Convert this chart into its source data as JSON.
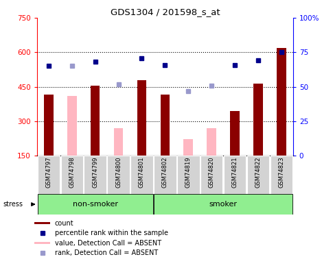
{
  "title": "GDS1304 / 201598_s_at",
  "samples": [
    "GSM74797",
    "GSM74798",
    "GSM74799",
    "GSM74800",
    "GSM74801",
    "GSM74802",
    "GSM74819",
    "GSM74820",
    "GSM74821",
    "GSM74822",
    "GSM74823"
  ],
  "count_values": [
    415,
    null,
    455,
    null,
    480,
    415,
    null,
    null,
    345,
    465,
    620
  ],
  "value_absent": [
    null,
    410,
    null,
    270,
    null,
    null,
    220,
    270,
    null,
    null,
    null
  ],
  "rank_present": [
    540,
    null,
    560,
    null,
    575,
    545,
    null,
    null,
    545,
    565,
    600
  ],
  "rank_absent": [
    null,
    540,
    null,
    460,
    null,
    null,
    430,
    455,
    null,
    null,
    null
  ],
  "ylim": [
    150,
    750
  ],
  "y2lim": [
    0,
    100
  ],
  "yticks": [
    150,
    300,
    450,
    600,
    750
  ],
  "y2ticks": [
    0,
    25,
    50,
    75,
    100
  ],
  "non_smoker_indices": [
    0,
    1,
    2,
    3,
    4
  ],
  "smoker_indices": [
    5,
    6,
    7,
    8,
    9,
    10
  ],
  "bar_color_present": "#8B0000",
  "bar_color_absent": "#FFB6C1",
  "dot_color_present": "#00008B",
  "dot_color_absent": "#9999CC",
  "group_label_nonsmoker": "non-smoker",
  "group_label_smoker": "smoker",
  "stress_label": "stress",
  "legend_items": [
    {
      "label": "count",
      "color": "#8B0000",
      "type": "bar"
    },
    {
      "label": "percentile rank within the sample",
      "color": "#00008B",
      "type": "dot"
    },
    {
      "label": "value, Detection Call = ABSENT",
      "color": "#FFB6C1",
      "type": "bar"
    },
    {
      "label": "rank, Detection Call = ABSENT",
      "color": "#9999CC",
      "type": "dot"
    }
  ],
  "group_bg_color": "#90EE90",
  "tick_label_bg": "#D3D3D3"
}
